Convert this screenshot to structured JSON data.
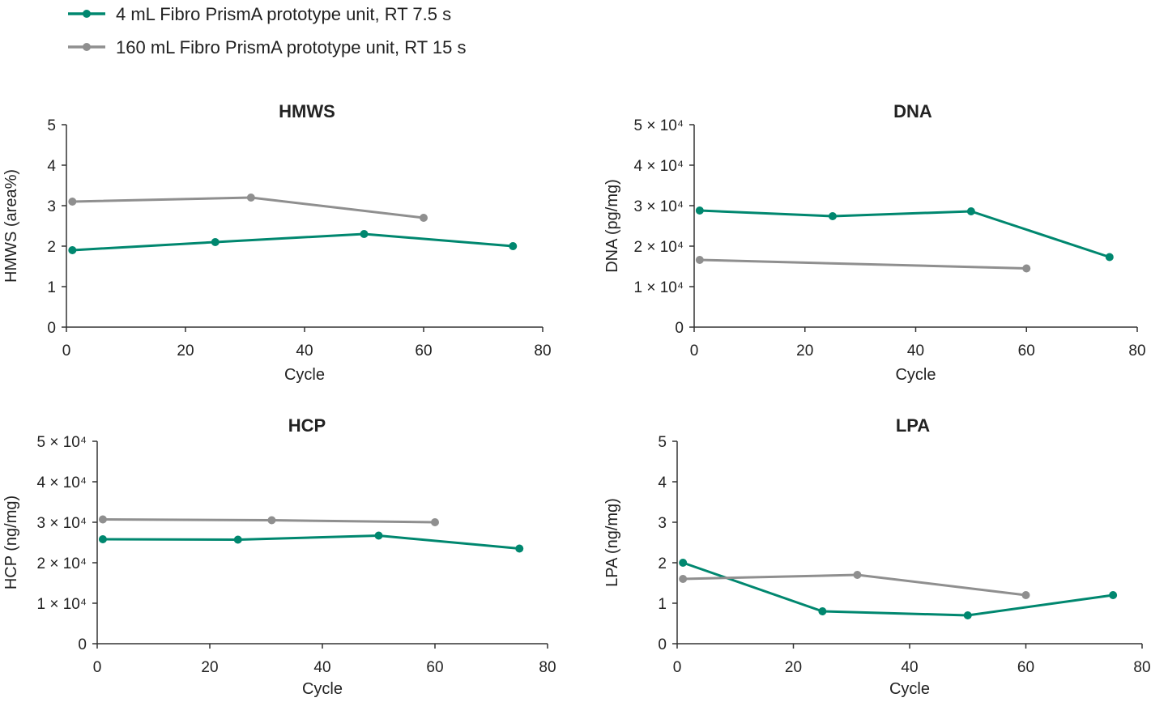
{
  "legend": [
    {
      "label": "4 mL Fibro PrismA prototype unit, RT 7.5 s",
      "color": "#00876f"
    },
    {
      "label": "160 mL Fibro PrismA prototype unit, RT 15 s",
      "color": "#8f8f8f"
    }
  ],
  "chart_data": [
    {
      "type": "line",
      "title": "HMWS",
      "xlabel": "Cycle",
      "ylabel": "HMWS (area%)",
      "xlim": [
        0,
        80
      ],
      "ylim": [
        0,
        5
      ],
      "xticks": [
        "0",
        "20",
        "40",
        "60",
        "80"
      ],
      "yticks": [
        "0",
        "1",
        "2",
        "3",
        "4",
        "5"
      ],
      "series": [
        {
          "name": "4 mL Fibro PrismA prototype unit, RT 7.5 s",
          "x": [
            1,
            25,
            50,
            75
          ],
          "y": [
            1.9,
            2.1,
            2.3,
            2.0
          ]
        },
        {
          "name": "160 mL Fibro PrismA prototype unit, RT 15 s",
          "x": [
            1,
            31,
            60
          ],
          "y": [
            3.1,
            3.2,
            2.7
          ]
        }
      ]
    },
    {
      "type": "line",
      "title": "DNA",
      "xlabel": "Cycle",
      "ylabel": "DNA (pg/mg)",
      "xlim": [
        0,
        80
      ],
      "ylim": [
        0,
        50000
      ],
      "xticks": [
        "0",
        "20",
        "40",
        "60",
        "80"
      ],
      "yticks": [
        "0",
        "1 × 10⁴",
        "2 × 10⁴",
        "3 × 10⁴",
        "4 × 10⁴",
        "5 × 10⁴"
      ],
      "series": [
        {
          "name": "4 mL Fibro PrismA prototype unit, RT 7.5 s",
          "x": [
            1,
            25,
            50,
            75
          ],
          "y": [
            28800,
            27400,
            28600,
            17300
          ]
        },
        {
          "name": "160 mL Fibro PrismA prototype unit, RT 15 s",
          "x": [
            1,
            60
          ],
          "y": [
            16600,
            14500
          ]
        }
      ]
    },
    {
      "type": "line",
      "title": "HCP",
      "xlabel": "Cycle",
      "ylabel": "HCP (ng/mg)",
      "xlim": [
        0,
        80
      ],
      "ylim": [
        0,
        50000
      ],
      "xticks": [
        "0",
        "20",
        "40",
        "60",
        "80"
      ],
      "yticks": [
        "0",
        "1 × 10⁴",
        "2 × 10⁴",
        "3 × 10⁴",
        "4 × 10⁴",
        "5 × 10⁴"
      ],
      "series": [
        {
          "name": "4 mL Fibro PrismA prototype unit, RT 7.5 s",
          "x": [
            1,
            25,
            50,
            75
          ],
          "y": [
            25800,
            25700,
            26700,
            23500
          ]
        },
        {
          "name": "160 mL Fibro PrismA prototype unit, RT 15 s",
          "x": [
            1,
            31,
            60
          ],
          "y": [
            30700,
            30500,
            30000
          ]
        }
      ]
    },
    {
      "type": "line",
      "title": "LPA",
      "xlabel": "Cycle",
      "ylabel": "LPA (ng/mg)",
      "xlim": [
        0,
        80
      ],
      "ylim": [
        0,
        5
      ],
      "xticks": [
        "0",
        "20",
        "40",
        "60",
        "80"
      ],
      "yticks": [
        "0",
        "1",
        "2",
        "3",
        "4",
        "5"
      ],
      "series": [
        {
          "name": "4 mL Fibro PrismA prototype unit, RT 7.5 s",
          "x": [
            1,
            25,
            50,
            75
          ],
          "y": [
            2.0,
            0.8,
            0.7,
            1.2
          ]
        },
        {
          "name": "160 mL Fibro PrismA prototype unit, RT 15 s",
          "x": [
            1,
            31,
            60
          ],
          "y": [
            1.6,
            1.7,
            1.2
          ]
        }
      ]
    }
  ]
}
